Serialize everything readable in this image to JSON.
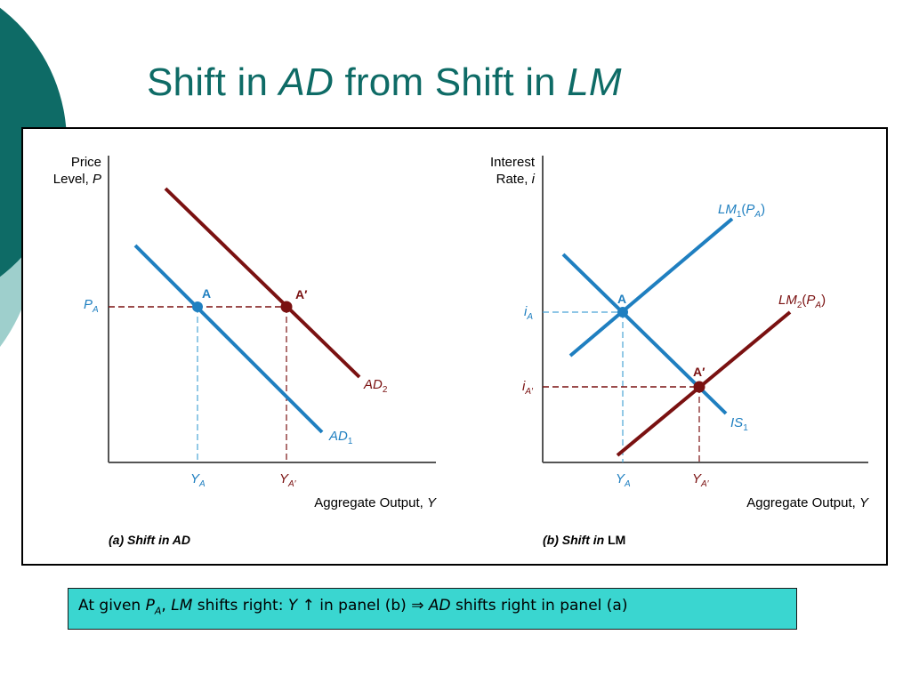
{
  "slide": {
    "title_parts": [
      "Shift in ",
      "AD",
      " from Shift in ",
      "LM"
    ]
  },
  "panel_a": {
    "y_axis_label": [
      "Price",
      "Level, ",
      "P"
    ],
    "x_axis_label": [
      "Aggregate Output, ",
      "Y"
    ],
    "caption": "(a) Shift in AD",
    "price_level_label": [
      "P",
      "A"
    ],
    "output_ticks": [
      {
        "base": "Y",
        "sub": "A"
      },
      {
        "base": "Y",
        "sub": "A′"
      }
    ],
    "points": [
      {
        "label": "A",
        "color": "#1f7fc0"
      },
      {
        "label": "A′",
        "color": "#7a1111"
      }
    ],
    "curves": [
      {
        "base": "AD",
        "sub": "1",
        "color": "#1f7fc0"
      },
      {
        "base": "AD",
        "sub": "2",
        "color": "#7a1111"
      }
    ]
  },
  "panel_b": {
    "y_axis_label": [
      "Interest",
      "Rate, ",
      "i"
    ],
    "x_axis_label": [
      "Aggregate Output, ",
      "Y"
    ],
    "caption": [
      "(b) Shift in ",
      "LM"
    ],
    "rate_ticks": [
      {
        "base": "i",
        "sub": "A"
      },
      {
        "base": "i",
        "sub": "A′"
      }
    ],
    "output_ticks": [
      {
        "base": "Y",
        "sub": "A"
      },
      {
        "base": "Y",
        "sub": "A′"
      }
    ],
    "points": [
      {
        "label": "A",
        "color": "#1f7fc0"
      },
      {
        "label": "A′",
        "color": "#7a1111"
      }
    ],
    "curves": [
      {
        "base": "LM",
        "sub": "1",
        "suffix": "(P",
        "suffix_sub": "A",
        "close": ")",
        "color": "#1f7fc0"
      },
      {
        "base": "LM",
        "sub": "2",
        "suffix": "(P",
        "suffix_sub": "A",
        "close": ")",
        "color": "#7a1111"
      },
      {
        "base": "IS",
        "sub": "1",
        "color": "#1f7fc0"
      }
    ]
  },
  "note": {
    "parts": [
      "At given ",
      "P",
      "A",
      ", ",
      "LM",
      " shifts right: ",
      "Y",
      " ↑ in panel (b) ⇒ ",
      "AD",
      " shifts right in panel (a)"
    ]
  },
  "colors": {
    "teal_dark": "#0e6b66",
    "teal_light": "#9ecfcc",
    "blue": "#1f7fc0",
    "maroon": "#7a1111",
    "note_bg": "#3ad6d0"
  }
}
